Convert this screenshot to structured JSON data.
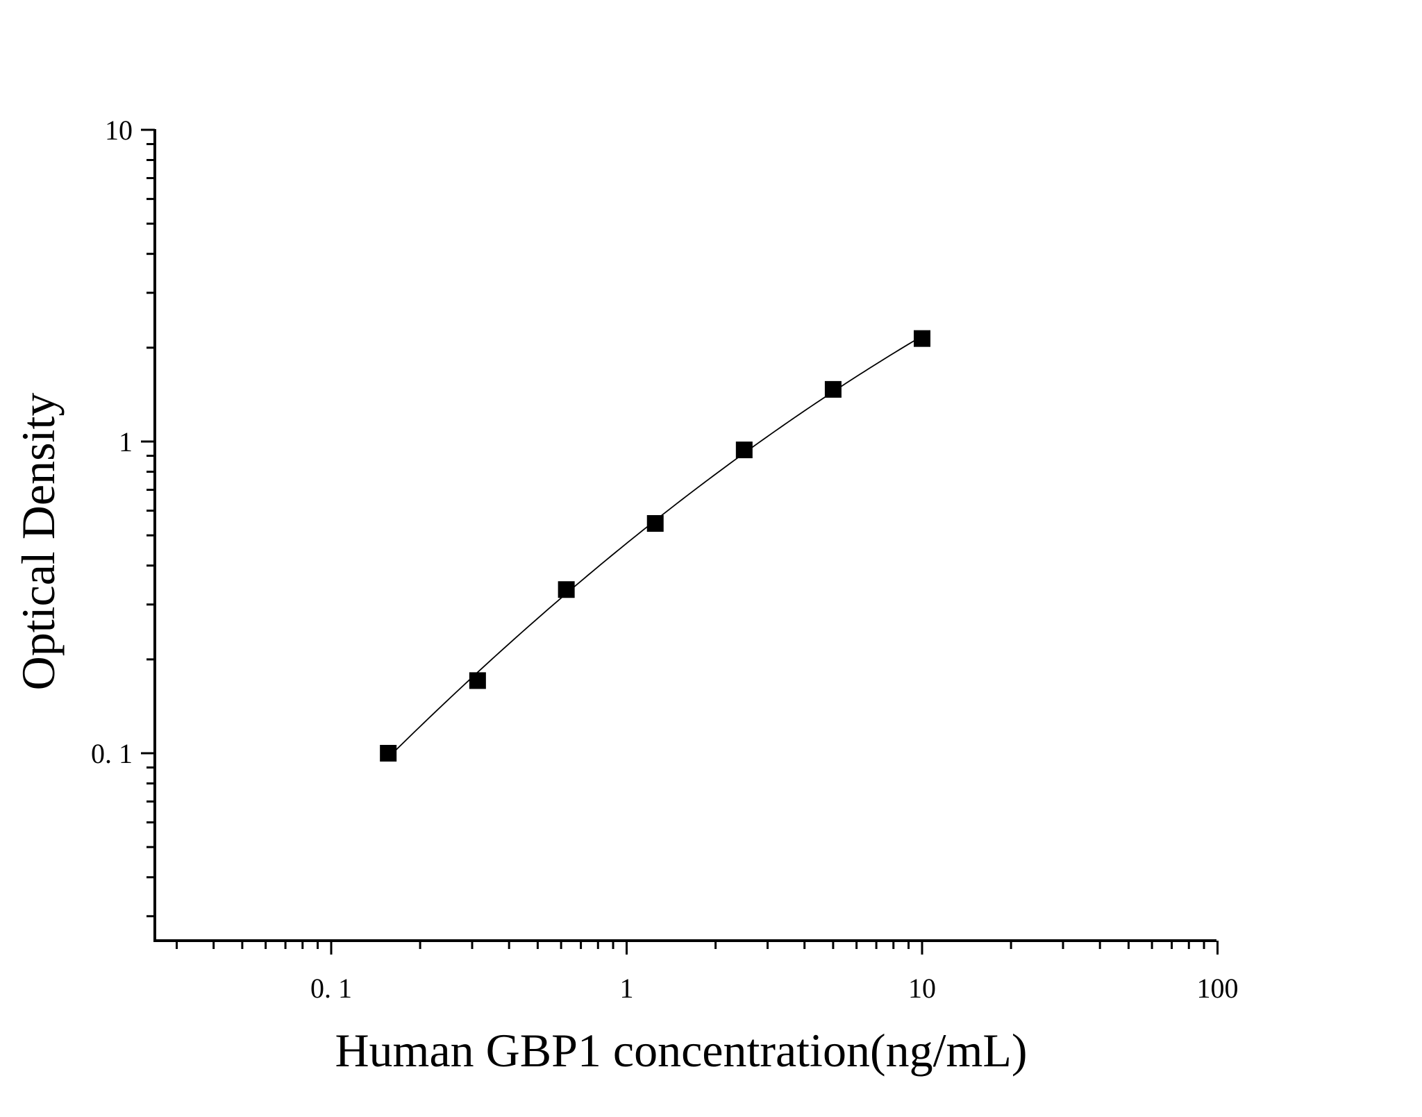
{
  "chart_data": {
    "type": "scatter",
    "xlabel": "Human GBP1 concentration(ng/mL)",
    "ylabel": "Optical Density",
    "xscale": "log",
    "yscale": "log",
    "xlim": [
      0.025,
      100
    ],
    "ylim": [
      0.025,
      10
    ],
    "x_ticks": [
      {
        "value": 0.1,
        "label": "0. 1"
      },
      {
        "value": 1,
        "label": "1"
      },
      {
        "value": 10,
        "label": "10"
      },
      {
        "value": 100,
        "label": "100"
      }
    ],
    "y_ticks": [
      {
        "value": 0.1,
        "label": "0. 1"
      },
      {
        "value": 1,
        "label": "1"
      },
      {
        "value": 10,
        "label": "10"
      }
    ],
    "grid": false,
    "legend": "none",
    "series": [
      {
        "x": [
          0.156,
          0.313,
          0.625,
          1.25,
          2.5,
          5,
          10
        ],
        "y": [
          0.1,
          0.171,
          0.335,
          0.546,
          0.94,
          1.47,
          2.14
        ],
        "marker": "square",
        "fit_curve": true,
        "color": "#000000"
      }
    ]
  }
}
